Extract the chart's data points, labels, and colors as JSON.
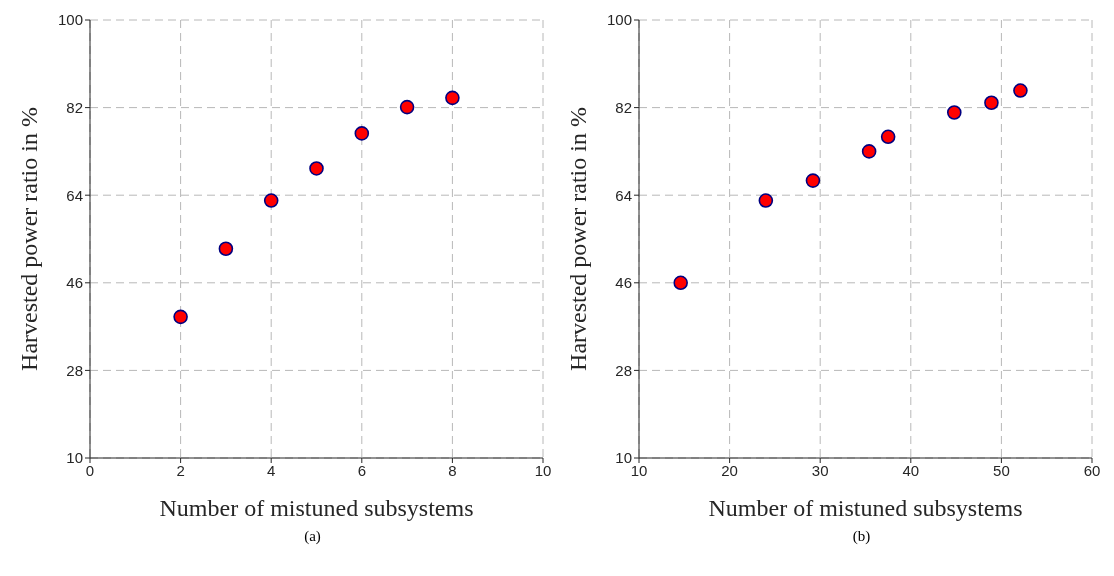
{
  "chart_data": [
    {
      "type": "scatter",
      "xlabel": "Number of mistuned subsystems",
      "ylabel": "Harvested power ratio in %",
      "annotations": [
        "(a)"
      ],
      "x": [
        2,
        3,
        4,
        5,
        6,
        7,
        8
      ],
      "values": [
        39.0,
        53.0,
        62.9,
        69.5,
        76.7,
        82.1,
        84.0
      ],
      "color": "#ff0000",
      "marker": "circle",
      "xlim": [
        0,
        10
      ],
      "xticks": [
        0,
        2,
        4,
        6,
        8,
        10
      ],
      "ylim": [
        10,
        100
      ],
      "yticks": [
        10,
        28,
        46,
        64,
        82,
        100
      ],
      "grid": true
    },
    {
      "type": "scatter",
      "xlabel": "Number of mistuned subsystems",
      "ylabel": "Harvested power ratio in %",
      "annotations": [
        "(b)"
      ],
      "x": [
        14.6,
        24.0,
        29.2,
        35.4,
        37.5,
        44.8,
        48.9,
        52.1
      ],
      "values": [
        46.0,
        62.9,
        67.0,
        73.0,
        76.0,
        81.0,
        83.0,
        85.5
      ],
      "color": "#ff0000",
      "marker": "circle",
      "xlim": [
        10,
        60
      ],
      "xticks": [
        10,
        20,
        30,
        40,
        50,
        60
      ],
      "ylim": [
        10,
        100
      ],
      "yticks": [
        10,
        28,
        46,
        64,
        82,
        100
      ],
      "grid": true
    }
  ]
}
